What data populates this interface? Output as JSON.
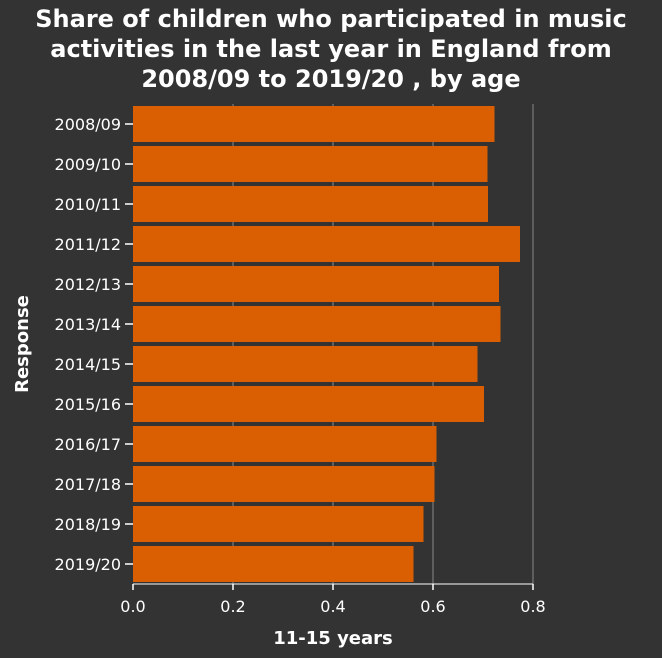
{
  "chart_data": {
    "type": "bar",
    "orientation": "horizontal",
    "title_lines": [
      "Share of children who participated in music",
      "activities in the last year in England from",
      "2008/09 to 2019/20 , by age"
    ],
    "xlabel": "11-15 years",
    "ylabel": "Response",
    "xlim": [
      0,
      0.8
    ],
    "xticks": [
      "0.0",
      "0.2",
      "0.4",
      "0.6",
      "0.8"
    ],
    "grid": true,
    "categories": [
      "2008/09",
      "2009/10",
      "2010/11",
      "2011/12",
      "2012/13",
      "2013/14",
      "2014/15",
      "2015/16",
      "2016/17",
      "2017/18",
      "2018/19",
      "2019/20"
    ],
    "values": [
      0.723,
      0.709,
      0.71,
      0.774,
      0.732,
      0.735,
      0.689,
      0.702,
      0.607,
      0.603,
      0.581,
      0.561
    ],
    "bar_color": "#d95f02",
    "background_color": "#333333",
    "text_color": "#ffffff",
    "grid_color": "#8a8a8a"
  }
}
